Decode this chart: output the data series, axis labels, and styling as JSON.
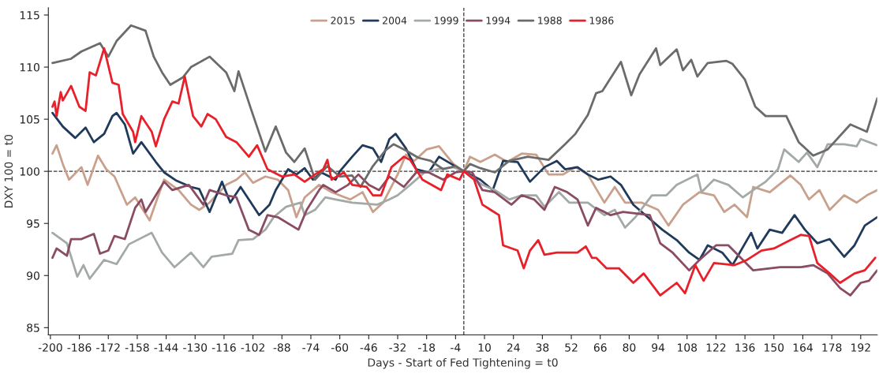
{
  "chart_data": {
    "type": "line",
    "xlabel": "Days - Start of Fed Tightening = t0",
    "ylabel": "DXY 100 = t0",
    "xlim": [
      -201,
      200
    ],
    "ylim": [
      84.3,
      115.7
    ],
    "xticks": [
      -200,
      -186,
      -172,
      -158,
      -144,
      -130,
      -116,
      -102,
      -88,
      -74,
      -60,
      -46,
      -32,
      -18,
      -4,
      10,
      24,
      38,
      52,
      66,
      80,
      94,
      108,
      122,
      136,
      150,
      164,
      178,
      192
    ],
    "yticks": [
      85,
      90,
      95,
      100,
      105,
      110,
      115
    ],
    "grid": false,
    "legend": "top",
    "line_style": "solid",
    "marker": "none",
    "ref_lines": [
      {
        "axis": "x",
        "value": 0,
        "color": "#333333",
        "line_style": "dashed"
      },
      {
        "axis": "y",
        "value": 100,
        "color": "#333333",
        "line_style": "dashed"
      }
    ],
    "series": [
      {
        "name": "2015",
        "color": "#c9a08c",
        "x": [
          -199,
          -197,
          -194,
          -191,
          -185,
          -182,
          -177,
          -173,
          -169,
          -163,
          -159,
          -152,
          -149,
          -145,
          -138,
          -132,
          -128,
          -123,
          -115,
          -110,
          -106,
          -102,
          -96,
          -90,
          -85,
          -81,
          -77,
          -70,
          -64,
          -55,
          -49,
          -44,
          -39,
          -32,
          -28,
          -24,
          -18,
          -12,
          -5,
          0,
          3,
          8,
          15,
          21,
          28,
          35,
          41,
          48,
          54,
          60,
          65,
          68,
          73,
          78,
          86,
          94,
          99,
          106,
          114,
          121,
          126,
          131,
          137,
          140,
          148,
          158,
          163,
          167,
          172,
          177,
          184,
          190,
          195,
          200
        ],
        "values": [
          101.7,
          102.5,
          100.7,
          99.2,
          100.4,
          98.7,
          101.5,
          100.2,
          99.5,
          96.8,
          97.5,
          95.3,
          97.0,
          99.2,
          98.2,
          96.8,
          96.3,
          97.0,
          98.7,
          99.2,
          99.9,
          98.9,
          99.5,
          99.2,
          98.2,
          95.6,
          97.5,
          98.7,
          98.0,
          97.3,
          98.0,
          96.1,
          97.0,
          99.7,
          101.6,
          101.0,
          102.1,
          102.4,
          100.7,
          100.0,
          101.4,
          100.9,
          101.6,
          100.9,
          101.7,
          101.6,
          99.7,
          99.7,
          100.4,
          99.7,
          98.0,
          97.0,
          98.5,
          97.0,
          97.0,
          96.3,
          94.8,
          96.8,
          98.0,
          97.7,
          96.1,
          96.8,
          95.6,
          98.5,
          98.0,
          99.6,
          98.7,
          97.3,
          98.2,
          96.3,
          97.7,
          97.0,
          97.7,
          98.2
        ]
      },
      {
        "name": "2004",
        "color": "#1f3a5a",
        "x": [
          -199,
          -194,
          -188,
          -183,
          -179,
          -174,
          -170,
          -168,
          -164,
          -160,
          -156,
          -149,
          -145,
          -139,
          -132,
          -128,
          -123,
          -117,
          -113,
          -108,
          -99,
          -94,
          -91,
          -85,
          -81,
          -77,
          -73,
          -69,
          -62,
          -60,
          -54,
          -49,
          -44,
          -40,
          -36,
          -33,
          -28,
          -23,
          -17,
          -12,
          -6,
          0,
          8,
          14,
          19,
          26,
          32,
          39,
          45,
          49,
          55,
          60,
          65,
          71,
          76,
          82,
          89,
          96,
          103,
          109,
          114,
          118,
          125,
          130,
          139,
          142,
          148,
          154,
          160,
          165,
          171,
          177,
          184,
          189,
          194,
          200
        ],
        "values": [
          105.6,
          104.3,
          103.2,
          104.2,
          102.8,
          103.6,
          105.3,
          105.6,
          104.5,
          101.7,
          102.8,
          100.9,
          99.9,
          99.1,
          98.5,
          98.3,
          96.1,
          99.0,
          97.0,
          98.5,
          95.8,
          96.8,
          98.2,
          100.2,
          99.7,
          100.3,
          99.2,
          99.9,
          99.2,
          100.0,
          101.4,
          102.5,
          102.2,
          100.9,
          103.1,
          103.6,
          102.2,
          100.2,
          99.9,
          101.4,
          100.7,
          100.0,
          99.2,
          98.2,
          101.0,
          100.9,
          99.0,
          100.4,
          101.0,
          100.2,
          100.4,
          99.7,
          99.2,
          99.5,
          98.7,
          96.8,
          95.6,
          94.4,
          93.4,
          92.2,
          91.5,
          92.9,
          92.2,
          91.0,
          94.1,
          92.6,
          94.4,
          94.1,
          95.8,
          94.4,
          93.1,
          93.5,
          91.8,
          92.9,
          94.8,
          95.6
        ]
      },
      {
        "name": "1999",
        "color": "#a3aaa6",
        "x": [
          -199,
          -192,
          -187,
          -184,
          -181,
          -174,
          -168,
          -162,
          -151,
          -146,
          -140,
          -132,
          -126,
          -122,
          -112,
          -109,
          -102,
          -96,
          -92,
          -86,
          -79,
          -77,
          -72,
          -67,
          -62,
          -54,
          -42,
          -36,
          -32,
          -26,
          -19,
          -13,
          -5,
          0,
          9,
          15,
          22,
          28,
          35,
          39,
          46,
          51,
          60,
          68,
          73,
          78,
          83,
          91,
          98,
          103,
          113,
          115,
          121,
          128,
          135,
          140,
          146,
          152,
          155,
          162,
          166,
          171,
          176,
          184,
          190,
          192,
          200
        ],
        "values": [
          94.1,
          93.1,
          89.9,
          91.0,
          89.7,
          91.5,
          91.1,
          93.0,
          94.1,
          92.2,
          90.8,
          92.2,
          90.8,
          91.8,
          92.1,
          93.4,
          93.5,
          94.4,
          95.6,
          96.6,
          97.0,
          95.8,
          96.3,
          97.5,
          97.3,
          97.0,
          96.8,
          97.3,
          97.7,
          98.7,
          99.9,
          100.2,
          100.4,
          100.0,
          98.7,
          98.2,
          97.3,
          97.7,
          97.7,
          96.6,
          98.0,
          97.0,
          97.0,
          95.8,
          96.3,
          94.6,
          95.6,
          97.7,
          97.7,
          98.7,
          99.7,
          98.0,
          99.2,
          98.7,
          97.5,
          98.2,
          99.0,
          100.2,
          102.1,
          100.9,
          101.8,
          100.4,
          102.6,
          102.6,
          102.4,
          103.1,
          102.5
        ]
      },
      {
        "name": "1994",
        "color": "#8a4c63",
        "x": [
          -199,
          -197,
          -192,
          -190,
          -185,
          -179,
          -176,
          -172,
          -169,
          -164,
          -159,
          -156,
          -154,
          -149,
          -145,
          -141,
          -133,
          -126,
          -123,
          -115,
          -110,
          -104,
          -99,
          -95,
          -90,
          -80,
          -76,
          -70,
          -68,
          -62,
          -56,
          -51,
          -46,
          -41,
          -36,
          -29,
          -23,
          -17,
          -10,
          -4,
          0,
          4,
          9,
          15,
          23,
          28,
          34,
          39,
          44,
          50,
          55,
          60,
          64,
          71,
          77,
          90,
          95,
          101,
          109,
          114,
          122,
          128,
          135,
          140,
          153,
          163,
          169,
          176,
          182,
          187,
          192,
          196,
          200
        ],
        "values": [
          91.7,
          92.6,
          91.9,
          93.5,
          93.5,
          94.0,
          92.1,
          92.4,
          93.8,
          93.5,
          96.5,
          97.3,
          96.1,
          97.7,
          99.0,
          98.2,
          98.7,
          96.8,
          98.2,
          97.7,
          97.5,
          94.4,
          93.9,
          95.8,
          95.6,
          94.4,
          96.3,
          98.2,
          98.7,
          98.0,
          98.7,
          99.7,
          98.7,
          98.2,
          99.5,
          98.5,
          99.9,
          99.9,
          99.2,
          99.9,
          100.0,
          99.9,
          98.2,
          98.0,
          96.8,
          97.7,
          97.3,
          96.3,
          98.5,
          98.0,
          97.3,
          94.8,
          96.5,
          95.8,
          96.1,
          95.8,
          93.1,
          92.2,
          90.5,
          91.5,
          92.9,
          92.9,
          91.5,
          90.5,
          90.8,
          90.8,
          91.0,
          90.2,
          88.8,
          88.1,
          89.3,
          89.5,
          90.5
        ]
      },
      {
        "name": "1988",
        "color": "#6b6b6b",
        "x": [
          -199,
          -190,
          -185,
          -176,
          -172,
          -168,
          -161,
          -154,
          -150,
          -146,
          -142,
          -136,
          -132,
          -123,
          -115,
          -111,
          -109,
          -103,
          -96,
          -91,
          -86,
          -82,
          -77,
          -72,
          -66,
          -60,
          -54,
          -50,
          -44,
          -38,
          -34,
          -28,
          -22,
          -16,
          -10,
          -4,
          0,
          3,
          8,
          15,
          22,
          31,
          41,
          49,
          54,
          60,
          64,
          67,
          76,
          81,
          85,
          93,
          95,
          103,
          106,
          110,
          113,
          118,
          127,
          130,
          136,
          141,
          146,
          156,
          162,
          169,
          176,
          187,
          195,
          200
        ],
        "values": [
          110.4,
          110.8,
          111.5,
          112.3,
          111.0,
          112.5,
          114.0,
          113.5,
          111.0,
          109.5,
          108.3,
          109.0,
          110.0,
          111.0,
          109.5,
          107.7,
          109.6,
          106.0,
          101.9,
          104.3,
          101.8,
          100.9,
          102.2,
          99.2,
          100.5,
          99.5,
          99.6,
          98.5,
          100.5,
          102.0,
          102.6,
          102.0,
          101.3,
          101.0,
          100.2,
          100.5,
          100.0,
          100.7,
          100.3,
          99.9,
          101.0,
          101.4,
          101.1,
          102.6,
          103.6,
          105.4,
          107.5,
          107.7,
          110.5,
          107.3,
          109.3,
          111.8,
          110.2,
          111.7,
          109.7,
          110.7,
          109.1,
          110.4,
          110.6,
          110.3,
          108.8,
          106.2,
          105.3,
          105.3,
          102.8,
          101.5,
          102.1,
          104.5,
          103.8,
          107.0
        ]
      },
      {
        "name": "1986",
        "color": "#e8202a",
        "x": [
          -199,
          -198,
          -197,
          -195,
          -194,
          -190,
          -186,
          -183,
          -181,
          -178,
          -174,
          -170,
          -167,
          -165,
          -160,
          -159,
          -156,
          -151,
          -149,
          -145,
          -141,
          -138,
          -135,
          -131,
          -127,
          -124,
          -120,
          -115,
          -110,
          -104,
          -100,
          -95,
          -88,
          -82,
          -77,
          -72,
          -68,
          -66,
          -64,
          -58,
          -54,
          -47,
          -44,
          -40,
          -35,
          -29,
          -26,
          -20,
          -11,
          -8,
          -2,
          0,
          5,
          9,
          13,
          17,
          19,
          26,
          29,
          32,
          36,
          39,
          45,
          55,
          59,
          62,
          64,
          69,
          75,
          82,
          87,
          95,
          103,
          107,
          112,
          116,
          121,
          131,
          137,
          144,
          150,
          158,
          163,
          167,
          171,
          177,
          182,
          189,
          194,
          199
        ],
        "values": [
          106.2,
          106.7,
          105.3,
          107.6,
          106.8,
          108.2,
          106.2,
          105.8,
          109.5,
          109.2,
          111.8,
          108.5,
          108.3,
          105.5,
          103.8,
          102.8,
          105.3,
          103.8,
          102.4,
          105.0,
          106.7,
          106.5,
          109.1,
          105.3,
          104.3,
          105.5,
          105.0,
          103.3,
          102.8,
          101.4,
          102.5,
          100.2,
          99.5,
          99.7,
          99.0,
          99.7,
          100.2,
          101.1,
          99.2,
          99.9,
          98.7,
          98.5,
          97.7,
          97.7,
          100.4,
          101.4,
          101.1,
          99.2,
          98.2,
          99.7,
          99.2,
          100.0,
          99.2,
          96.8,
          96.3,
          95.8,
          92.9,
          92.4,
          90.7,
          92.4,
          93.4,
          92.0,
          92.2,
          92.2,
          92.8,
          91.7,
          91.7,
          90.7,
          90.7,
          89.3,
          90.2,
          88.1,
          89.3,
          88.3,
          91.0,
          89.5,
          91.2,
          91.0,
          91.5,
          92.4,
          92.6,
          93.4,
          93.9,
          93.8,
          91.2,
          90.2,
          89.3,
          90.2,
          90.5,
          91.7
        ]
      }
    ]
  }
}
